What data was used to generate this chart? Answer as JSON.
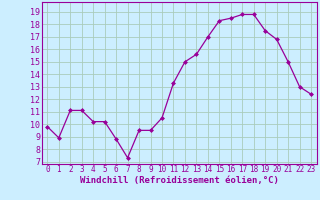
{
  "x": [
    0,
    1,
    2,
    3,
    4,
    5,
    6,
    7,
    8,
    9,
    10,
    11,
    12,
    13,
    14,
    15,
    16,
    17,
    18,
    19,
    20,
    21,
    22,
    23
  ],
  "y": [
    9.8,
    8.9,
    11.1,
    11.1,
    10.2,
    10.2,
    8.8,
    7.3,
    9.5,
    9.5,
    10.5,
    13.3,
    15.0,
    15.6,
    17.0,
    18.3,
    18.5,
    18.8,
    18.8,
    17.5,
    16.8,
    15.0,
    13.0,
    12.4
  ],
  "x_last": 8.6,
  "line_color": "#990099",
  "marker": "D",
  "marker_size": 2,
  "bg_color": "#cceeff",
  "grid_color": "#aaccbb",
  "xlabel": "Windchill (Refroidissement éolien,°C)",
  "ylabel_ticks": [
    7,
    8,
    9,
    10,
    11,
    12,
    13,
    14,
    15,
    16,
    17,
    18,
    19
  ],
  "ylim": [
    6.8,
    19.8
  ],
  "xlim": [
    -0.5,
    23.5
  ],
  "tick_color": "#990099",
  "label_color": "#990099",
  "xlabel_fontsize": 6.5,
  "ytick_fontsize": 6,
  "xtick_fontsize": 5.5,
  "spine_color": "#990099"
}
